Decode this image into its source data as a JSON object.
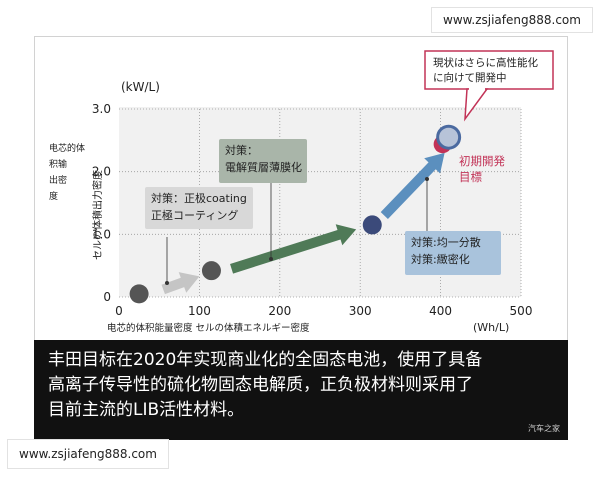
{
  "watermarks": {
    "top": "www.zsjiafeng888.com",
    "bottom": "www.zsjiafeng888.com"
  },
  "chart_data": {
    "type": "scatter",
    "x_unit": "(Wh/L)",
    "y_unit": "(kW/L)",
    "xlabel": "电芯的体积能量密度 セルの体積エネルギー密度",
    "ylabel_cn": [
      "电芯的体",
      "积输",
      "出密",
      "度"
    ],
    "ylabel_jp": "セルの体積出力密度",
    "xlim": [
      0,
      500
    ],
    "ylim": [
      0,
      3.0
    ],
    "x_ticks": [
      "0",
      "100",
      "200",
      "300",
      "400",
      "500"
    ],
    "y_ticks": [
      "0",
      "1.0",
      "2.0",
      "3.0"
    ],
    "points": [
      {
        "x": 25,
        "y": 0.05,
        "color": "#555555"
      },
      {
        "x": 115,
        "y": 0.42,
        "color": "#555555"
      },
      {
        "x": 315,
        "y": 1.15,
        "color": "#3b4a7a"
      },
      {
        "x": 410,
        "y": 2.55,
        "color": "#b7c3d8"
      }
    ],
    "arrows": [
      {
        "from": [
          55,
          0.12
        ],
        "to": [
          100,
          0.33
        ],
        "color": "#c5c5c5"
      },
      {
        "from": [
          140,
          0.45
        ],
        "to": [
          295,
          1.08
        ],
        "color": "#4f7a57"
      },
      {
        "from": [
          330,
          1.3
        ],
        "to": [
          405,
          2.3
        ],
        "color": "#5b8fbe"
      }
    ],
    "series_labels": {
      "box1": {
        "lines": [
          "対策：正极coating",
          "正極コーティング"
        ]
      },
      "box2": {
        "lines": [
          "対策：",
          "電解質層薄膜化"
        ]
      },
      "box3": {
        "lines": [
          "対策:均一分散",
          "対策:緻密化"
        ]
      },
      "current": {
        "lines": [
          "現状はさらに高性能化",
          "に向けて開発中"
        ]
      },
      "target": {
        "lines": [
          "初期開発",
          "目標"
        ]
      }
    }
  },
  "caption": {
    "lines": [
      "丰田目标在2020年实现商业化的全固态电池，使用了具备",
      "高离子传导性的硫化物固态电解质，正负极材料则采用了",
      "目前主流的LIB活性材料。"
    ],
    "source": "汽车之家"
  },
  "colors": {
    "grid_point": "#555555",
    "green": "#4f7a57",
    "blue": "#5b8fbe",
    "navy": "#3b4a7a",
    "target": "#c23357",
    "callout_border": "#c23357"
  }
}
